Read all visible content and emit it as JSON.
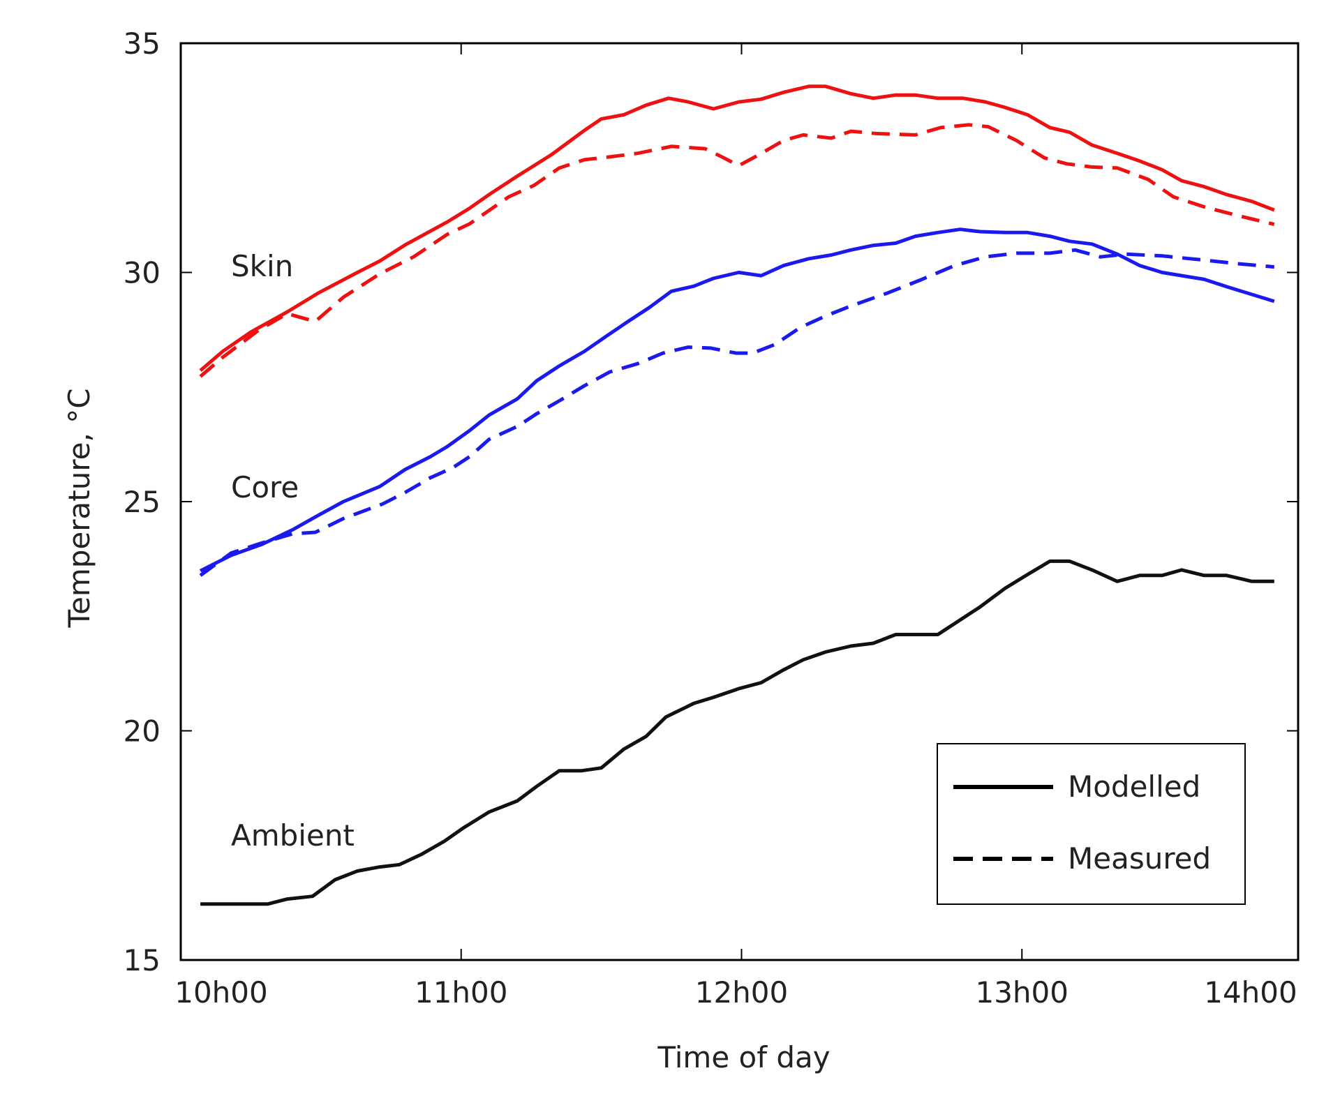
{
  "chart_data": {
    "type": "line",
    "title": "",
    "xlabel": "Time of day",
    "ylabel": "Temperature, °C",
    "xlim": [
      10,
      14
    ],
    "ylim": [
      15,
      35
    ],
    "xticks": [
      10,
      11,
      12,
      13,
      14
    ],
    "xtick_labels": [
      "10h00",
      "11h00",
      "12h00",
      "13h00",
      "14h00"
    ],
    "yticks": [
      15,
      20,
      25,
      30,
      35
    ],
    "ytick_labels": [
      "15",
      "20",
      "25",
      "30",
      "35"
    ],
    "grid": false,
    "legend": {
      "position": "bottom-right",
      "entries": [
        {
          "label": "Modelled",
          "style": "solid"
        },
        {
          "label": "Measured",
          "style": "dashed"
        }
      ]
    },
    "annotations": [
      "Skin",
      "Core",
      "Ambient"
    ],
    "series": [
      {
        "name": "Skin modelled",
        "group": "Skin",
        "style": "solid",
        "color": "#ee1111",
        "x": [
          10.07,
          10.15,
          10.25,
          10.38,
          10.49,
          10.63,
          10.71,
          10.8,
          10.95,
          11.03,
          11.1,
          11.2,
          11.32,
          11.44,
          11.5,
          11.58,
          11.66,
          11.74,
          11.81,
          11.9,
          11.99,
          12.07,
          12.15,
          12.24,
          12.3,
          12.39,
          12.47,
          12.55,
          12.62,
          12.7,
          12.79,
          12.87,
          12.94,
          13.02,
          13.1,
          13.17,
          13.25,
          13.34,
          13.42,
          13.5,
          13.57,
          13.65,
          13.73,
          13.82,
          13.9
        ],
        "y": [
          27.86,
          28.28,
          28.7,
          29.14,
          29.55,
          30.0,
          30.25,
          30.6,
          31.1,
          31.4,
          31.7,
          32.1,
          32.56,
          33.1,
          33.35,
          33.44,
          33.65,
          33.8,
          33.72,
          33.57,
          33.72,
          33.78,
          33.93,
          34.06,
          34.06,
          33.9,
          33.8,
          33.87,
          33.87,
          33.8,
          33.8,
          33.72,
          33.6,
          33.44,
          33.16,
          33.06,
          32.78,
          32.6,
          32.43,
          32.24,
          32.0,
          31.87,
          31.7,
          31.55,
          31.36
        ]
      },
      {
        "name": "Skin measured",
        "group": "Skin",
        "style": "dashed",
        "color": "#ee1111",
        "x": [
          10.07,
          10.15,
          10.28,
          10.38,
          10.48,
          10.58,
          10.71,
          10.83,
          10.95,
          11.03,
          11.17,
          11.26,
          11.35,
          11.44,
          11.53,
          11.63,
          11.75,
          11.87,
          11.93,
          11.99,
          12.06,
          12.15,
          12.22,
          12.32,
          12.39,
          12.48,
          12.62,
          12.71,
          12.81,
          12.88,
          12.98,
          13.08,
          13.16,
          13.25,
          13.34,
          13.45,
          13.54,
          13.65,
          13.77,
          13.9
        ],
        "y": [
          27.73,
          28.15,
          28.75,
          29.1,
          28.93,
          29.46,
          29.97,
          30.34,
          30.83,
          31.06,
          31.65,
          31.9,
          32.28,
          32.46,
          32.52,
          32.6,
          32.75,
          32.7,
          32.52,
          32.33,
          32.56,
          32.88,
          33.0,
          32.93,
          33.08,
          33.03,
          33.0,
          33.16,
          33.22,
          33.18,
          32.88,
          32.5,
          32.37,
          32.3,
          32.28,
          32.03,
          31.65,
          31.43,
          31.24,
          31.05
        ]
      },
      {
        "name": "Core modelled",
        "group": "Core",
        "style": "solid",
        "color": "#1a1aee",
        "x": [
          10.07,
          10.18,
          10.29,
          10.4,
          10.49,
          10.58,
          10.71,
          10.8,
          10.89,
          10.95,
          11.03,
          11.1,
          11.2,
          11.27,
          11.35,
          11.44,
          11.52,
          11.6,
          11.67,
          11.75,
          11.83,
          11.9,
          11.99,
          12.07,
          12.15,
          12.24,
          12.32,
          12.39,
          12.47,
          12.55,
          12.62,
          12.7,
          12.78,
          12.85,
          12.94,
          13.02,
          13.1,
          13.17,
          13.25,
          13.34,
          13.42,
          13.5,
          13.57,
          13.65,
          13.73,
          13.82,
          13.9
        ],
        "y": [
          23.49,
          23.83,
          24.07,
          24.39,
          24.7,
          25.0,
          25.33,
          25.7,
          25.98,
          26.2,
          26.55,
          26.89,
          27.24,
          27.64,
          27.96,
          28.28,
          28.62,
          28.95,
          29.23,
          29.59,
          29.7,
          29.87,
          30.0,
          29.93,
          30.15,
          30.3,
          30.38,
          30.49,
          30.59,
          30.64,
          30.79,
          30.87,
          30.94,
          30.89,
          30.87,
          30.87,
          30.79,
          30.68,
          30.62,
          30.4,
          30.15,
          30.0,
          29.93,
          29.85,
          29.69,
          29.52,
          29.37
        ]
      },
      {
        "name": "Core measured",
        "group": "Core",
        "style": "dashed",
        "color": "#1a1aee",
        "x": [
          10.07,
          10.18,
          10.29,
          10.4,
          10.48,
          10.58,
          10.72,
          10.8,
          10.89,
          10.97,
          11.03,
          11.1,
          11.2,
          11.27,
          11.35,
          11.44,
          11.53,
          11.63,
          11.72,
          11.81,
          11.89,
          11.98,
          12.04,
          12.12,
          12.21,
          12.3,
          12.39,
          12.52,
          12.64,
          12.76,
          12.87,
          12.98,
          13.1,
          13.19,
          13.28,
          13.37,
          13.5,
          13.65,
          13.77,
          13.9
        ],
        "y": [
          23.39,
          23.88,
          24.1,
          24.3,
          24.33,
          24.63,
          24.95,
          25.2,
          25.52,
          25.74,
          25.98,
          26.36,
          26.64,
          26.92,
          27.2,
          27.53,
          27.83,
          28.01,
          28.24,
          28.37,
          28.35,
          28.24,
          28.24,
          28.43,
          28.8,
          29.05,
          29.27,
          29.55,
          29.84,
          30.15,
          30.34,
          30.42,
          30.42,
          30.49,
          30.34,
          30.4,
          30.36,
          30.27,
          30.19,
          30.12
        ]
      },
      {
        "name": "Ambient modelled",
        "group": "Ambient",
        "style": "solid",
        "color": "#111111",
        "x": [
          10.07,
          10.31,
          10.38,
          10.47,
          10.55,
          10.63,
          10.71,
          10.78,
          10.86,
          10.94,
          11.01,
          11.1,
          11.2,
          11.27,
          11.35,
          11.43,
          11.5,
          11.58,
          11.66,
          11.73,
          11.83,
          11.9,
          11.99,
          12.07,
          12.15,
          12.22,
          12.3,
          12.39,
          12.47,
          12.55,
          12.62,
          12.7,
          12.78,
          12.85,
          12.94,
          13.02,
          13.1,
          13.17,
          13.25,
          13.34,
          13.42,
          13.5,
          13.57,
          13.65,
          13.73,
          13.82,
          13.9
        ],
        "y": [
          16.22,
          16.22,
          16.33,
          16.39,
          16.75,
          16.94,
          17.03,
          17.08,
          17.31,
          17.59,
          17.89,
          18.23,
          18.47,
          18.79,
          19.13,
          19.13,
          19.19,
          19.6,
          19.88,
          20.3,
          20.6,
          20.73,
          20.92,
          21.05,
          21.33,
          21.55,
          21.72,
          21.85,
          21.91,
          22.1,
          22.1,
          22.1,
          22.42,
          22.7,
          23.11,
          23.41,
          23.7,
          23.7,
          23.51,
          23.26,
          23.39,
          23.39,
          23.51,
          23.39,
          23.39,
          23.26,
          23.26
        ]
      }
    ]
  }
}
